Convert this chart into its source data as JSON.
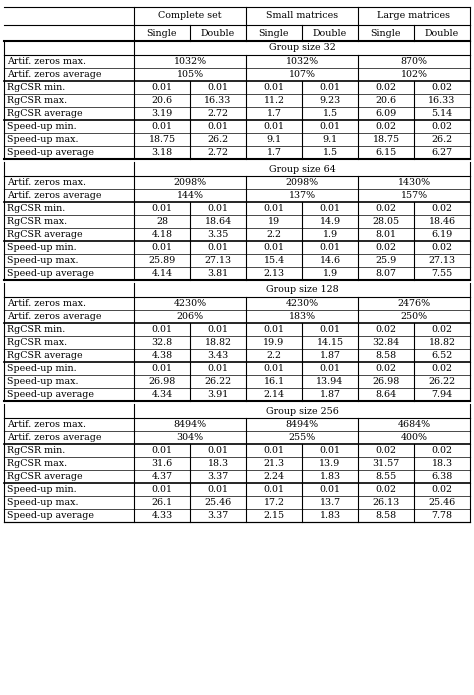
{
  "col_headers_level1": [
    "Complete set",
    "Small matrices",
    "Large matrices"
  ],
  "col_headers_level2": [
    "Single",
    "Double",
    "Single",
    "Double",
    "Single",
    "Double"
  ],
  "groups": [
    {
      "group_label": "Group size 32",
      "rows": [
        {
          "label": "Artif. zeros max.",
          "vals": [
            "1032%",
            "",
            "1032%",
            "",
            "870%",
            ""
          ],
          "merged": true
        },
        {
          "label": "Artif. zeros average",
          "vals": [
            "105%",
            "",
            "107%",
            "",
            "102%",
            ""
          ],
          "merged": true
        },
        {
          "label": "RgCSR min.",
          "vals": [
            "0.01",
            "0.01",
            "0.01",
            "0.01",
            "0.02",
            "0.02"
          ],
          "merged": false
        },
        {
          "label": "RgCSR max.",
          "vals": [
            "20.6",
            "16.33",
            "11.2",
            "9.23",
            "20.6",
            "16.33"
          ],
          "merged": false
        },
        {
          "label": "RgCSR average",
          "vals": [
            "3.19",
            "2.72",
            "1.7",
            "1.5",
            "6.09",
            "5.14"
          ],
          "merged": false
        },
        {
          "label": "Speed-up min.",
          "vals": [
            "0.01",
            "0.01",
            "0.01",
            "0.01",
            "0.02",
            "0.02"
          ],
          "merged": false
        },
        {
          "label": "Speed-up max.",
          "vals": [
            "18.75",
            "26.2",
            "9.1",
            "9.1",
            "18.75",
            "26.2"
          ],
          "merged": false
        },
        {
          "label": "Speed-up average",
          "vals": [
            "3.18",
            "2.72",
            "1.7",
            "1.5",
            "6.15",
            "6.27"
          ],
          "merged": false
        }
      ]
    },
    {
      "group_label": "Group size 64",
      "rows": [
        {
          "label": "Artif. zeros max.",
          "vals": [
            "2098%",
            "",
            "2098%",
            "",
            "1430%",
            ""
          ],
          "merged": true
        },
        {
          "label": "Artif. zeros average",
          "vals": [
            "144%",
            "",
            "137%",
            "",
            "157%",
            ""
          ],
          "merged": true
        },
        {
          "label": "RgCSR min.",
          "vals": [
            "0.01",
            "0.01",
            "0.01",
            "0.01",
            "0.02",
            "0.02"
          ],
          "merged": false
        },
        {
          "label": "RgCSR max.",
          "vals": [
            "28",
            "18.64",
            "19",
            "14.9",
            "28.05",
            "18.46"
          ],
          "merged": false
        },
        {
          "label": "RgCSR average",
          "vals": [
            "4.18",
            "3.35",
            "2.2",
            "1.9",
            "8.01",
            "6.19"
          ],
          "merged": false
        },
        {
          "label": "Speed-up min.",
          "vals": [
            "0.01",
            "0.01",
            "0.01",
            "0.01",
            "0.02",
            "0.02"
          ],
          "merged": false
        },
        {
          "label": "Speed-up max.",
          "vals": [
            "25.89",
            "27.13",
            "15.4",
            "14.6",
            "25.9",
            "27.13"
          ],
          "merged": false
        },
        {
          "label": "Speed-up average",
          "vals": [
            "4.14",
            "3.81",
            "2.13",
            "1.9",
            "8.07",
            "7.55"
          ],
          "merged": false
        }
      ]
    },
    {
      "group_label": "Group size 128",
      "rows": [
        {
          "label": "Artif. zeros max.",
          "vals": [
            "4230%",
            "",
            "4230%",
            "",
            "2476%",
            ""
          ],
          "merged": true
        },
        {
          "label": "Artif. zeros average",
          "vals": [
            "206%",
            "",
            "183%",
            "",
            "250%",
            ""
          ],
          "merged": true
        },
        {
          "label": "RgCSR min.",
          "vals": [
            "0.01",
            "0.01",
            "0.01",
            "0.01",
            "0.02",
            "0.02"
          ],
          "merged": false
        },
        {
          "label": "RgCSR max.",
          "vals": [
            "32.8",
            "18.82",
            "19.9",
            "14.15",
            "32.84",
            "18.82"
          ],
          "merged": false
        },
        {
          "label": "RgCSR average",
          "vals": [
            "4.38",
            "3.43",
            "2.2",
            "1.87",
            "8.58",
            "6.52"
          ],
          "merged": false
        },
        {
          "label": "Speed-up min.",
          "vals": [
            "0.01",
            "0.01",
            "0.01",
            "0.01",
            "0.02",
            "0.02"
          ],
          "merged": false
        },
        {
          "label": "Speed-up max.",
          "vals": [
            "26.98",
            "26.22",
            "16.1",
            "13.94",
            "26.98",
            "26.22"
          ],
          "merged": false
        },
        {
          "label": "Speed-up average",
          "vals": [
            "4.34",
            "3.91",
            "2.14",
            "1.87",
            "8.64",
            "7.94"
          ],
          "merged": false
        }
      ]
    },
    {
      "group_label": "Group size 256",
      "rows": [
        {
          "label": "Artif. zeros max.",
          "vals": [
            "8494%",
            "",
            "8494%",
            "",
            "4684%",
            ""
          ],
          "merged": true
        },
        {
          "label": "Artif. zeros average",
          "vals": [
            "304%",
            "",
            "255%",
            "",
            "400%",
            ""
          ],
          "merged": true
        },
        {
          "label": "RgCSR min.",
          "vals": [
            "0.01",
            "0.01",
            "0.01",
            "0.01",
            "0.02",
            "0.02"
          ],
          "merged": false
        },
        {
          "label": "RgCSR max.",
          "vals": [
            "31.6",
            "18.3",
            "21.3",
            "13.9",
            "31.57",
            "18.3"
          ],
          "merged": false
        },
        {
          "label": "RgCSR average",
          "vals": [
            "4.37",
            "3.37",
            "2.24",
            "1.83",
            "8.55",
            "6.38"
          ],
          "merged": false
        },
        {
          "label": "Speed-up min.",
          "vals": [
            "0.01",
            "0.01",
            "0.01",
            "0.01",
            "0.02",
            "0.02"
          ],
          "merged": false
        },
        {
          "label": "Speed-up max.",
          "vals": [
            "26.1",
            "25.46",
            "17.2",
            "13.7",
            "26.13",
            "25.46"
          ],
          "merged": false
        },
        {
          "label": "Speed-up average",
          "vals": [
            "4.33",
            "3.37",
            "2.15",
            "1.83",
            "8.58",
            "7.78"
          ],
          "merged": false
        }
      ]
    }
  ],
  "bg_color": "#ffffff",
  "text_color": "#000000",
  "font_size": 6.8
}
